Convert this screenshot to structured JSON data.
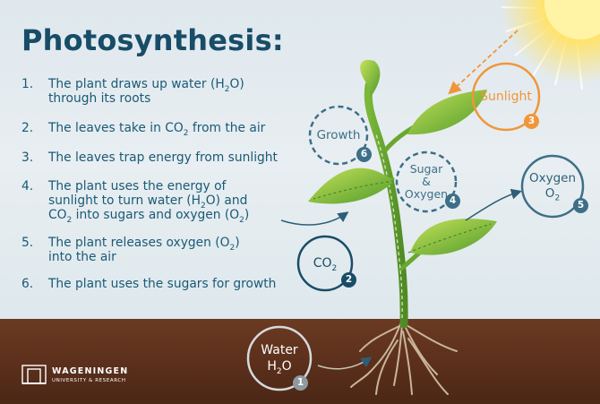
{
  "title": "Photosynthesis:",
  "steps": [
    {
      "num": "1.",
      "line1_a": "The plant draws up water (H",
      "line1_sub": "2",
      "line1_b": "O)",
      "line2": "through its roots"
    },
    {
      "num": "2.",
      "text_a": "The leaves take in CO",
      "text_sub": "2",
      "text_b": " from the air"
    },
    {
      "num": "3.",
      "text": "The leaves trap energy from sunlight"
    },
    {
      "num": "4.",
      "line1": "The plant uses the energy of",
      "line2_a": "sunlight to turn water (H",
      "line2_sub": "2",
      "line2_b": "O) and",
      "line3_a": "CO",
      "line3_sub": "2",
      "line3_b": " into sugars and oxygen (O",
      "line3_sub2": "2",
      "line3_c": ")"
    },
    {
      "num": "5.",
      "line1_a": "The plant releases oxygen (O",
      "line1_sub": "2",
      "line1_b": ")",
      "line2": "into the air"
    },
    {
      "num": "6.",
      "text": "The plant uses the sugars for growth"
    }
  ],
  "bubbles": {
    "water": {
      "line1": "Water",
      "line2_a": "H",
      "line2_sub": "2",
      "line2_b": "O",
      "badge": "1",
      "color": "#8e9aa2"
    },
    "co2": {
      "text_a": "CO",
      "text_sub": "2",
      "badge": "2",
      "color": "#184d68"
    },
    "sunlight": {
      "text": "Sunlight",
      "badge": "3",
      "color": "#f0963a"
    },
    "sugar": {
      "line1": "Sugar",
      "line2": "&",
      "line3": "Oxygen",
      "badge": "4",
      "color": "#3d6f88"
    },
    "oxygen": {
      "line1": "Oxygen",
      "line2_a": "O",
      "line2_sub": "2",
      "badge": "5",
      "color": "#3d6f88"
    },
    "growth": {
      "text": "Growth",
      "badge": "6",
      "color": "#3d6f88"
    }
  },
  "logo": {
    "name": "WAGENINGEN",
    "sub": "UNIVERSITY & RESEARCH"
  },
  "colors": {
    "title": "#184d68",
    "text": "#1a5a77",
    "soil": "#5a2f1b",
    "sun": "#ffe36b",
    "leaf": "#8cc63f",
    "stem": "#5f9a2c"
  }
}
